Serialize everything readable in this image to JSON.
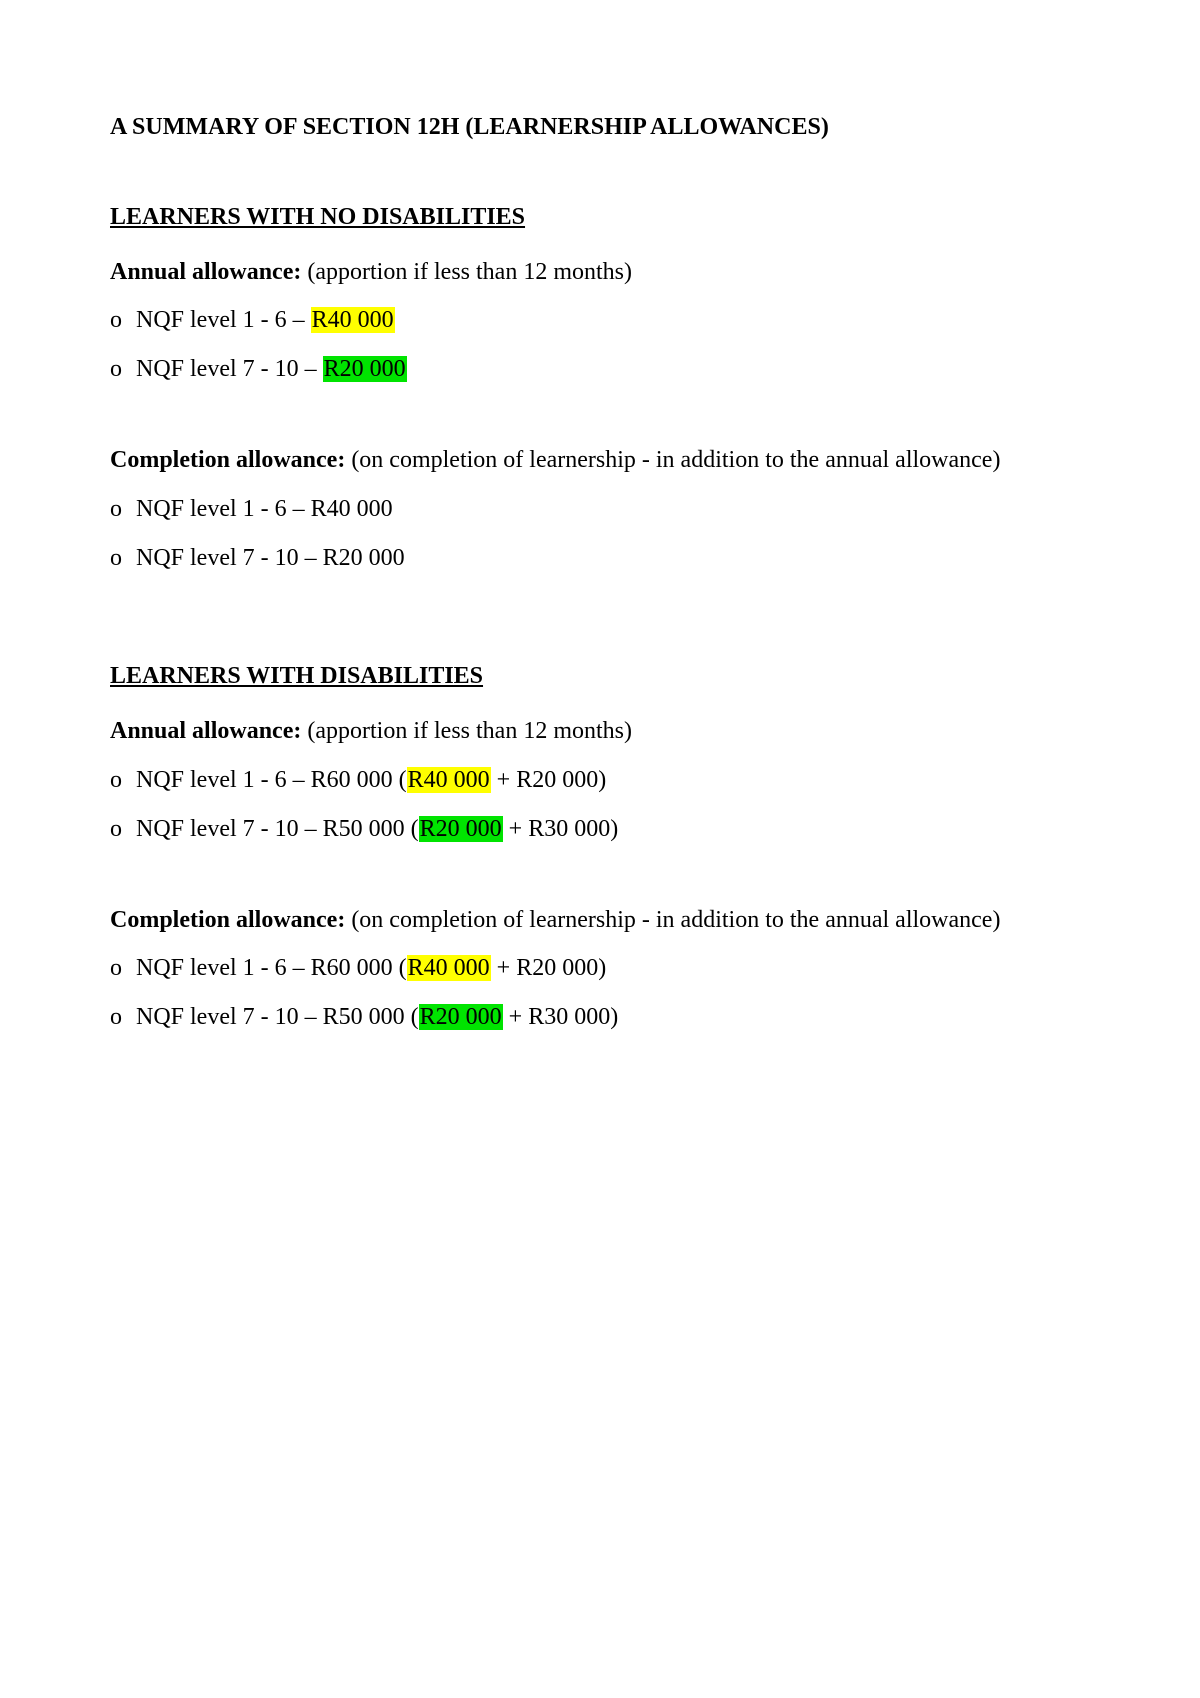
{
  "colors": {
    "highlight_yellow": "#ffff00",
    "highlight_green": "#00e400",
    "text": "#000000",
    "background": "#ffffff"
  },
  "title": "A SUMMARY OF SECTION 12H (LEARNERSHIP ALLOWANCES)",
  "sections": [
    {
      "heading": "LEARNERS WITH NO DISABILITIES",
      "blocks": [
        {
          "label": "Annual allowance:",
          "note": " (apportion if less than 12 months)",
          "items": [
            {
              "bullet": "o",
              "pre": " NQF level 1 - 6 – ",
              "hl_text": "R40 000",
              "hl_color": "highlight_yellow",
              "post": ""
            },
            {
              "bullet": "o",
              "pre": " NQF level 7 - 10 – ",
              "hl_text": "R20 000",
              "hl_color": "highlight_green",
              "post": ""
            }
          ]
        },
        {
          "label": "Completion allowance:",
          "note": " (on completion of learnership - in addition to the annual allowance)",
          "items": [
            {
              "bullet": "o",
              "pre": " NQF level 1 - 6 – R40 000",
              "hl_text": "",
              "hl_color": "",
              "post": ""
            },
            {
              "bullet": "o",
              "pre": " NQF level 7 - 10 – R20 000",
              "hl_text": "",
              "hl_color": "",
              "post": ""
            }
          ]
        }
      ]
    },
    {
      "heading": "LEARNERS WITH DISABILITIES",
      "blocks": [
        {
          "label": "Annual allowance:",
          "note": " (apportion if less than 12 months)",
          "items": [
            {
              "bullet": "o",
              "pre": " NQF level 1 - 6 – R60 000 (",
              "hl_text": "R40 000",
              "hl_color": "highlight_yellow",
              "post": " + R20 000)"
            },
            {
              "bullet": "o",
              "pre": " NQF level 7 - 10 – R50 000 (",
              "hl_text": "R20 000",
              "hl_color": "highlight_green",
              "post": " + R30 000)"
            }
          ]
        },
        {
          "label": "Completion allowance:",
          "note": " (on completion of learnership - in addition to the annual allowance)",
          "items": [
            {
              "bullet": "o",
              "pre": " NQF level 1 - 6 – R60 000 (",
              "hl_text": "R40 000",
              "hl_color": "highlight_yellow",
              "post": " + R20 000)"
            },
            {
              "bullet": "o",
              "pre": " NQF level 7 - 10 – R50 000 (",
              "hl_text": "R20 000",
              "hl_color": "highlight_green",
              "post": " + R30 000)"
            }
          ]
        }
      ]
    }
  ]
}
